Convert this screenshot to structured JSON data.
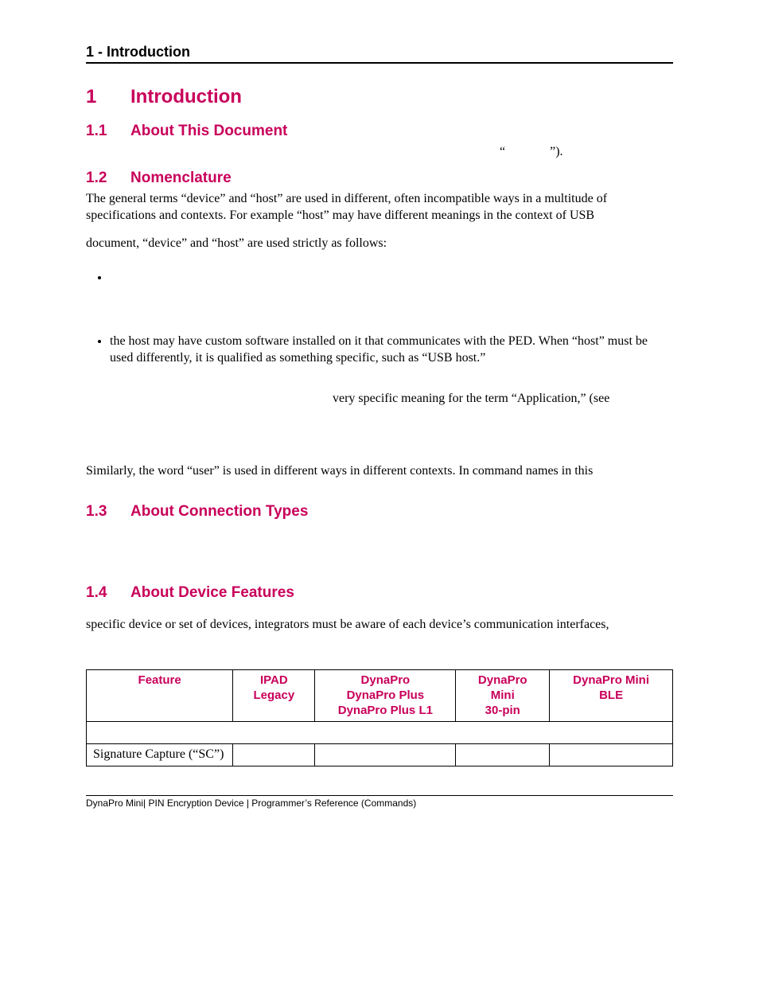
{
  "runningHead": "1 - Introduction",
  "h1": {
    "num": "1",
    "title": "Introduction"
  },
  "sections": {
    "s11": {
      "num": "1.1",
      "title": "About This Document"
    },
    "s12": {
      "num": "1.2",
      "title": "Nomenclature"
    },
    "s13": {
      "num": "1.3",
      "title": "About Connection Types"
    },
    "s14": {
      "num": "1.4",
      "title": "About Device Features"
    }
  },
  "text": {
    "fragQuote": "“              ”).",
    "nomP1": "The general terms “device” and “host” are used in different, often incompatible ways in a multitude of specifications and contexts.  For example “host” may have different meanings in the context of USB",
    "nomP2": "document, “device” and “host” are used strictly as follows:",
    "bullet2Inner": "the host may have custom software installed on it that communicates with the PED.  When “host” must be used differently, it is qualified as something specific, such as “USB host.”",
    "appFrag": "very specific meaning for the term “Application,” (see",
    "userPara": "Similarly, the word “user” is used in different ways in different contexts.  In command names in this",
    "featPara": "specific device or set of devices, integrators must be aware of each device’s communication interfaces,",
    "tableCaption": ""
  },
  "table": {
    "headers": [
      "Feature",
      "IPAD\nLegacy",
      "DynaPro\nDynaPro Plus\nDynaPro Plus L1",
      "DynaPro\nMini\n30-pin",
      "DynaPro Mini\nBLE"
    ],
    "rows": [
      [
        "",
        "",
        "",
        "",
        ""
      ],
      [
        "Signature Capture (“SC”)",
        "",
        "",
        "",
        ""
      ]
    ]
  },
  "footer": "DynaPro Mini| PIN Encryption Device | Programmer’s Reference (Commands)",
  "colors": {
    "accent": "#c8005a",
    "text": "#000000",
    "bg": "#ffffff"
  }
}
